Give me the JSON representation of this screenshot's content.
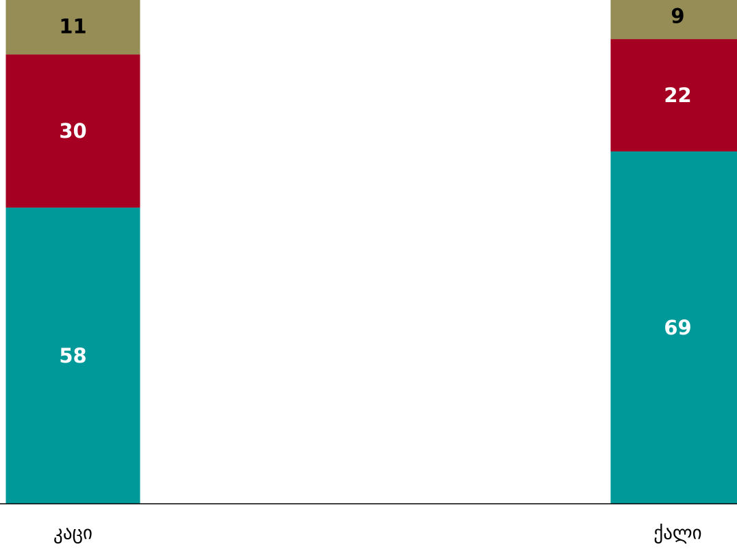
{
  "chart_data": {
    "type": "bar",
    "stacked": true,
    "categories": [
      "კაცი",
      "ქალი"
    ],
    "series": [
      {
        "values": [
          58,
          69
        ],
        "color": "#009999",
        "label_color": "#ffffff"
      },
      {
        "values": [
          30,
          22
        ],
        "color": "#a50021",
        "label_color": "#ffffff"
      },
      {
        "values": [
          11,
          9
        ],
        "color": "#968c55",
        "label_color": "#000000"
      }
    ],
    "ylim": [
      0,
      99
    ],
    "grid": false,
    "legend": "none",
    "axis_color": "#000000"
  }
}
